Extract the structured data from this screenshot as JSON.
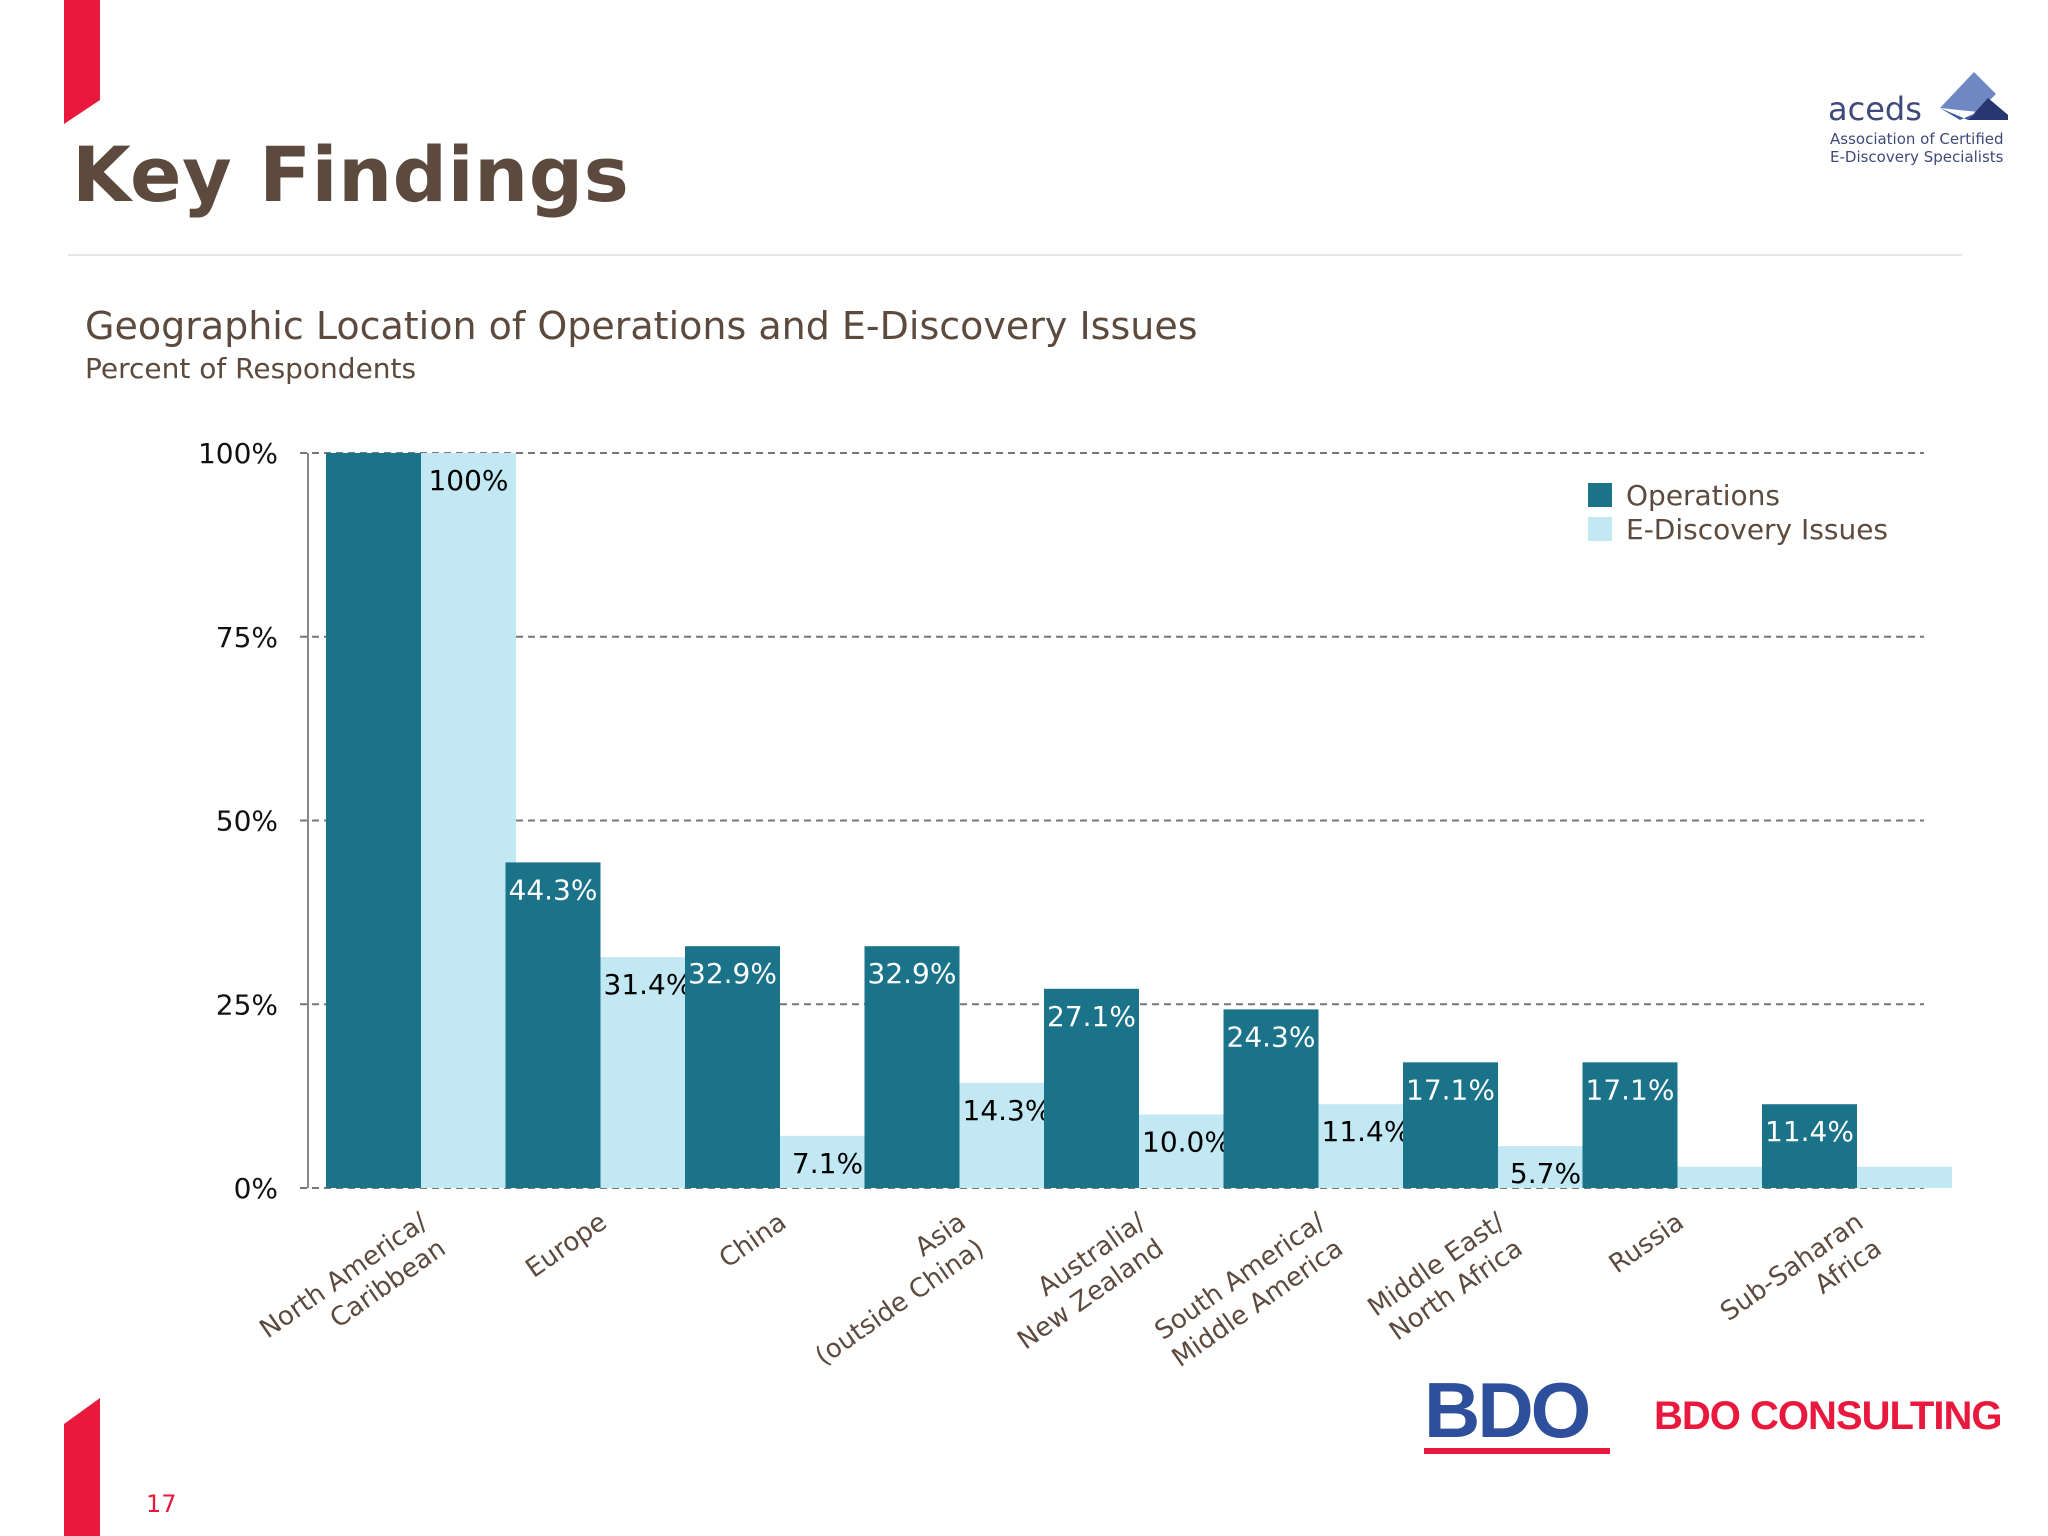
{
  "slide": {
    "title": "Key Findings",
    "page_number": "17"
  },
  "brand": {
    "aceds_word": "aceds",
    "aceds_line1": "Association of Certified",
    "aceds_line2": "E-Discovery Specialists",
    "bdo": "BDO",
    "bdo_consulting": "BDO CONSULTING",
    "accent_color": "#e8193c"
  },
  "chart_data": {
    "type": "bar",
    "title": "Geographic Location of Operations and E-Discovery Issues",
    "subtitle": "Percent of Respondents",
    "categories": [
      [
        "North America/",
        "Caribbean"
      ],
      [
        "Europe"
      ],
      [
        "China"
      ],
      [
        "Asia",
        "(outside China)"
      ],
      [
        "Australia/",
        "New Zealand"
      ],
      [
        "South America/",
        "Middle America"
      ],
      [
        "Middle East/",
        "North Africa"
      ],
      [
        "Russia"
      ],
      [
        "Sub-Saharan",
        "Africa"
      ]
    ],
    "series": [
      {
        "name": "Operations",
        "color": "#1a7389",
        "label_color": "#ffffff",
        "values": [
          100,
          44.3,
          32.9,
          32.9,
          27.1,
          24.3,
          17.1,
          17.1,
          11.4
        ],
        "labels": [
          "",
          "44.3%",
          "32.9%",
          "32.9%",
          "27.1%",
          "24.3%",
          "17.1%",
          "17.1%",
          "11.4%"
        ]
      },
      {
        "name": "E-Discovery Issues",
        "color": "#c2e8f4",
        "label_color": "#000000",
        "values": [
          100,
          31.4,
          7.1,
          14.3,
          10.0,
          11.4,
          5.7,
          2.9,
          2.9
        ],
        "labels": [
          "100%",
          "31.4%",
          "7.1%",
          "14.3%",
          "10.0%",
          "11.4%",
          "5.7%",
          "",
          ""
        ]
      }
    ],
    "yticks": [
      0,
      25,
      50,
      75,
      100
    ],
    "ytick_labels": [
      "0%",
      "25%",
      "50%",
      "75%",
      "100%"
    ],
    "ylim": [
      0,
      100
    ],
    "grid": "dashed horizontal",
    "legend": "top-right"
  }
}
